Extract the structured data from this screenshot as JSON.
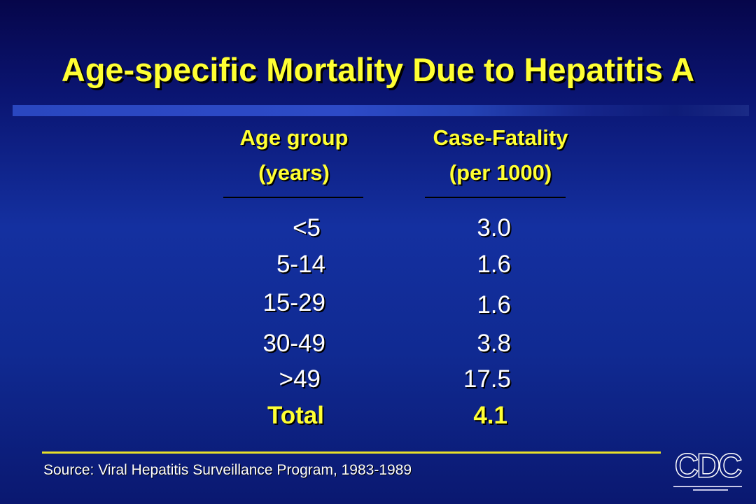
{
  "slide": {
    "title": "Age-specific Mortality Due to Hepatitis A",
    "table": {
      "headers": [
        {
          "line1": "Age group",
          "line2": "(years)"
        },
        {
          "line1": "Case-Fatality",
          "line2": "(per 1000)"
        }
      ],
      "rows": [
        {
          "age": "<5",
          "value": "3.0"
        },
        {
          "age": "5-14",
          "value": "1.6"
        },
        {
          "age": "15-29",
          "value": "1.6"
        },
        {
          "age": "30-49",
          "value": "3.8"
        },
        {
          "age": ">49",
          "value": "17.5"
        }
      ],
      "total": {
        "label": "Total",
        "value": "4.1"
      }
    },
    "source": "Source: Viral Hepatitis Surveillance Program, 1983-1989",
    "logo": {
      "text": "CDC",
      "icon": "cdc-logo-icon"
    },
    "colors": {
      "title": "#ffff33",
      "background": "#1430a0",
      "text": "#ffffff",
      "rule": "#e8e02a"
    }
  }
}
